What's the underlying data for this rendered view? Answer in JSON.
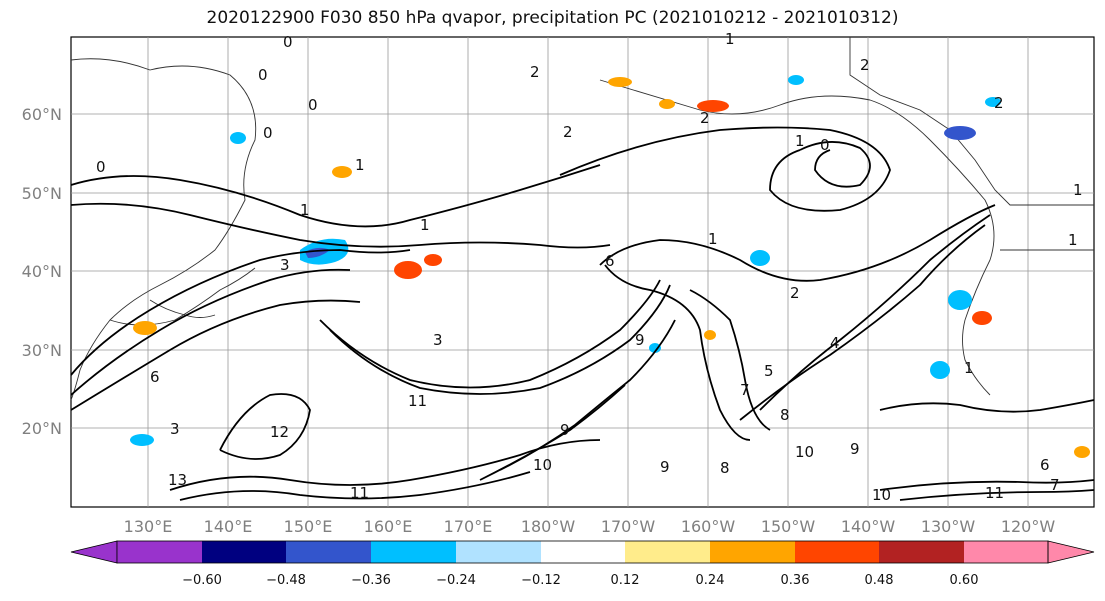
{
  "title": "2020122900 F030 850 hPa qvapor, precipitation PC (2021010212 - 2021010312)",
  "map": {
    "lon_ticks": [
      "130°E",
      "140°E",
      "150°E",
      "160°E",
      "170°E",
      "180°W",
      "170°W",
      "160°W",
      "150°W",
      "140°W",
      "130°W",
      "120°W"
    ],
    "lat_ticks": [
      "60°N",
      "50°N",
      "40°N",
      "30°N",
      "20°N"
    ],
    "contour_labels": [
      "0",
      "0",
      "0",
      "0",
      "0",
      "0",
      "1",
      "1",
      "1",
      "1",
      "1",
      "1",
      "1",
      "1",
      "2",
      "2",
      "2",
      "2",
      "2",
      "2",
      "3",
      "3",
      "3",
      "4",
      "5",
      "6",
      "7",
      "8",
      "8",
      "9",
      "9",
      "9",
      "9",
      "10",
      "10",
      "10",
      "11",
      "11",
      "11",
      "12",
      "13",
      "7",
      "6",
      "1",
      "6"
    ]
  },
  "colorbar": {
    "labels": [
      "−0.60",
      "−0.48",
      "−0.36",
      "−0.24",
      "−0.12",
      "0.12",
      "0.24",
      "0.36",
      "0.48",
      "0.60"
    ],
    "colors": [
      "#9933cc",
      "#000080",
      "#3355cc",
      "#00bfff",
      "#b0e2ff",
      "#ffffff",
      "#ffec8b",
      "#ffa500",
      "#ff4500",
      "#b22222",
      "#ff88aa"
    ]
  }
}
